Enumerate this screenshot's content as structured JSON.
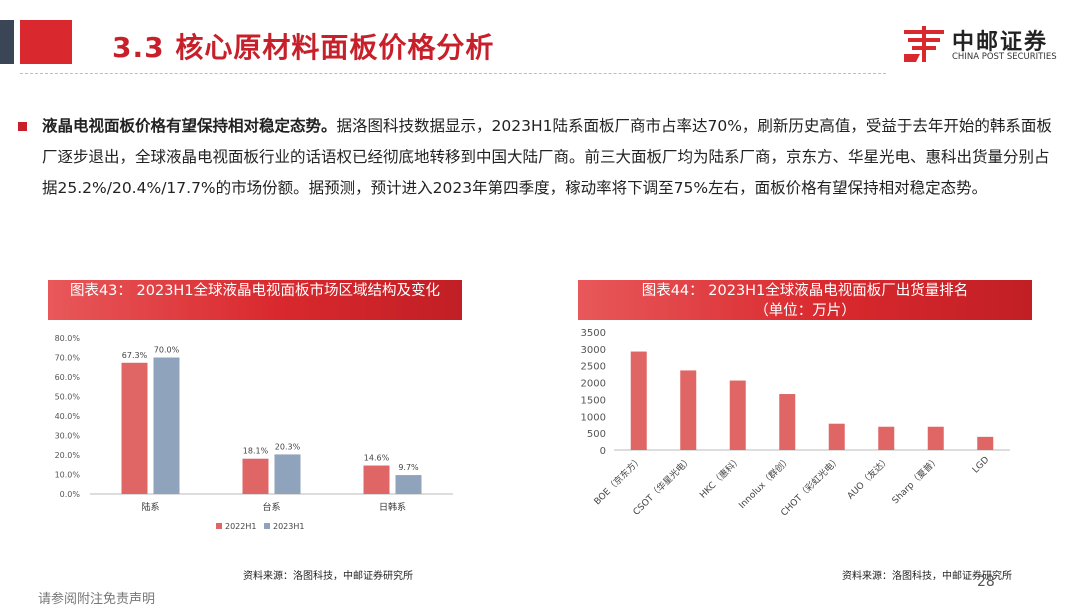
{
  "header": {
    "title": "3.3 核心原材料面板价格分析",
    "logo_cn": "中邮证券",
    "logo_en": "CHINA POST SECURITIES",
    "accent_color": "#d9292e"
  },
  "body": {
    "lead": "液晶电视面板价格有望保持相对稳定态势。",
    "text": "据洛图科技数据显示，2023H1陆系面板厂商市占率达70%，刷新历史高值，受益于去年开始的韩系面板厂逐步退出，全球液晶电视面板行业的话语权已经彻底地转移到中国大陆厂商。前三大面板厂均为陆系厂商，京东方、华星光电、惠科出货量分别占据25.2%/20.4%/17.7%的市场份额。据预测，预计进入2023年第四季度，稼动率将下调至75%左右，面板价格有望保持相对稳定态势。"
  },
  "charts": {
    "left_header": "图表43： 2023H1全球液晶电视面板市场区域结构及变化",
    "left_source": "资料来源：洛图科技，中邮证券研究所",
    "right_header_line1": "图表44： 2023H1全球液晶电视面板厂出货量排名",
    "right_header_line2": "（单位：万片）",
    "right_source": "资料来源：洛图科技，中邮证券研究所"
  },
  "chart_data": [
    {
      "type": "bar",
      "categories": [
        "陆系",
        "台系",
        "日韩系"
      ],
      "series": [
        {
          "name": "2022H1",
          "values": [
            67.3,
            18.1,
            14.6
          ],
          "labels": [
            "67.3%",
            "18.1%",
            "14.6%"
          ],
          "color": "#e06666"
        },
        {
          "name": "2023H1",
          "values": [
            70.0,
            20.3,
            9.7
          ],
          "labels": [
            "70.0%",
            "20.3%",
            "9.7%"
          ],
          "color": "#8fa3bd"
        }
      ],
      "ylim": [
        0,
        80
      ],
      "yticks": [
        "0.0%",
        "10.0%",
        "20.0%",
        "30.0%",
        "40.0%",
        "50.0%",
        "60.0%",
        "70.0%",
        "80.0%"
      ],
      "legend": "bottom"
    },
    {
      "type": "bar",
      "categories": [
        "BOE（京东方）",
        "CSOT（华星光电）",
        "HKC（惠科）",
        "Innolux（群创）",
        "CHOT（彩虹光电）",
        "AUO（友达）",
        "Sharp（夏普）",
        "LGD"
      ],
      "values": [
        2920,
        2360,
        2060,
        1660,
        780,
        690,
        690,
        390
      ],
      "color": "#e06666",
      "ylim": [
        0,
        3500
      ],
      "yticks": [
        "0",
        "500",
        "1000",
        "1500",
        "2000",
        "2500",
        "3000",
        "3500"
      ]
    }
  ],
  "footer": {
    "disclaimer": "请参阅附注免责声明",
    "page_number": "28"
  }
}
